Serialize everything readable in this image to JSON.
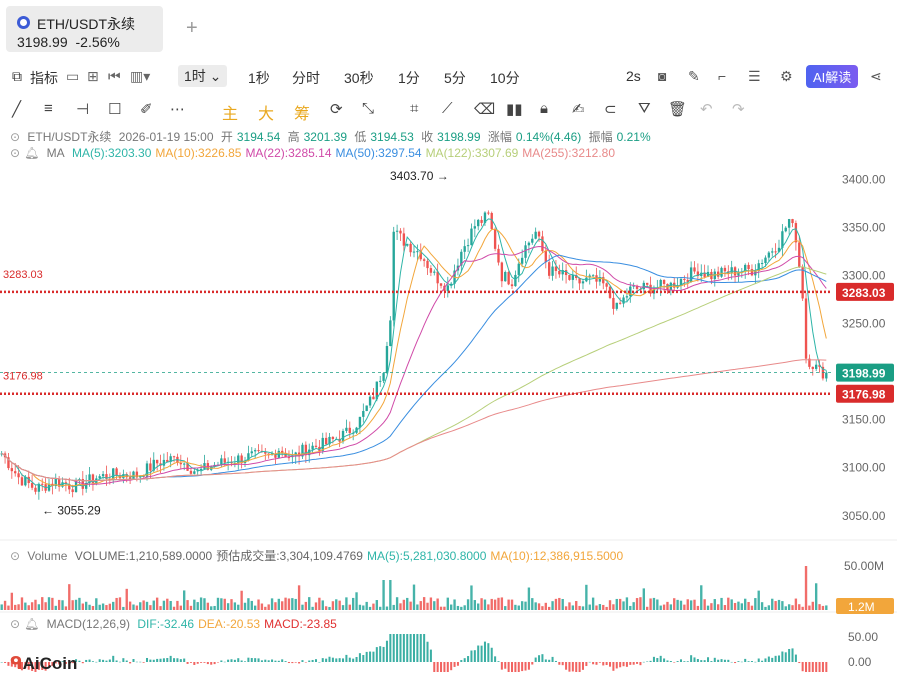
{
  "tab": {
    "title": "ETH/USDT永续",
    "price": "3198.99",
    "change": "-2.56%",
    "plus": "+"
  },
  "toolbar": {
    "indicator_label": "指标",
    "timeframes": [
      "1时",
      "1秒",
      "分时",
      "30秒",
      "1分",
      "5分",
      "10分"
    ],
    "active_timeframe": "1时",
    "refresh": "2s",
    "ai_label": "AI解读"
  },
  "drawing_tools": {
    "labels": [
      "主",
      "大",
      "筹"
    ]
  },
  "ohlc": {
    "symbol": "ETH/USDT永续",
    "datetime": "2026-01-19 15:00",
    "open_label": "开",
    "open": "3194.54",
    "high_label": "高",
    "high": "3201.39",
    "low_label": "低",
    "low": "3194.53",
    "close_label": "收",
    "close": "3198.99",
    "change_label": "涨幅",
    "change": "0.14%(4.46)",
    "amp_label": "振幅",
    "amp": "0.21%"
  },
  "ma_legend": {
    "label": "MA",
    "items": [
      {
        "text": "MA(5):3203.30",
        "color": "#2fb5a8"
      },
      {
        "text": "MA(10):3226.85",
        "color": "#f2a63b"
      },
      {
        "text": "MA(22):3285.14",
        "color": "#d04aa8"
      },
      {
        "text": "MA(50):3297.54",
        "color": "#3a8ee0"
      },
      {
        "text": "MA(122):3307.69",
        "color": "#b7cf7a"
      },
      {
        "text": "MA(255):3212.80",
        "color": "#e88a8a"
      }
    ]
  },
  "volume_legend": {
    "label": "Volume",
    "items": [
      {
        "text": "VOLUME:1,210,589.0000",
        "color": "#666666"
      },
      {
        "text": "预估成交量:3,304,109.4769",
        "color": "#666666"
      },
      {
        "text": "MA(5):5,281,030.8000",
        "color": "#2fb5a8"
      },
      {
        "text": "MA(10):12,386,915.5000",
        "color": "#f2a63b"
      }
    ],
    "axis_labels": [
      "50.00M"
    ],
    "current_label": "1.2M"
  },
  "macd_legend": {
    "label": "MACD(12,26,9)",
    "items": [
      {
        "text": "DIF:-32.46",
        "color": "#2fb5a8"
      },
      {
        "text": "DEA:-20.53",
        "color": "#f2a63b"
      },
      {
        "text": "MACD:-23.85",
        "color": "#e03030"
      }
    ],
    "axis_labels": [
      "50.00",
      "0.00"
    ]
  },
  "price_levels": {
    "left_labels": [
      "3283.03",
      "3176.98"
    ],
    "right_tags": [
      {
        "text": "3283.03",
        "value": 3283.03,
        "color": "#d92b2b"
      },
      {
        "text": "3198.99",
        "value": 3198.99,
        "color": "#1a9e84"
      },
      {
        "text": "3176.98",
        "value": 3176.98,
        "color": "#d92b2b"
      }
    ]
  },
  "annotations": {
    "high": {
      "text": "3403.70 →",
      "value": 3403.7
    },
    "low": {
      "text": "← 3055.29",
      "value": 3055.29
    }
  },
  "watermark": "AiCoin",
  "colors": {
    "up": "#26a69a",
    "down": "#ef5350",
    "level": "#d92b2b",
    "last": "#1a9e84"
  },
  "chart_data": {
    "type": "candlestick",
    "interval": "1h",
    "y_ticks": [
      3400,
      3350,
      3300,
      3250,
      3200,
      3150,
      3100,
      3050
    ],
    "y_tick_labels": [
      "3400.00",
      "3350.00",
      "3300.00",
      "3250.00",
      "3200.00",
      "3150.00",
      "3100.00",
      "3050.00"
    ],
    "ylim": [
      3030,
      3415
    ],
    "close_path": [
      [
        0,
        3115
      ],
      [
        5,
        3090
      ],
      [
        10,
        3078
      ],
      [
        16,
        3086
      ],
      [
        22,
        3080
      ],
      [
        28,
        3090
      ],
      [
        34,
        3093
      ],
      [
        40,
        3092
      ],
      [
        46,
        3105
      ],
      [
        52,
        3110
      ],
      [
        58,
        3095
      ],
      [
        62,
        3102
      ],
      [
        68,
        3108
      ],
      [
        74,
        3112
      ],
      [
        79,
        3111
      ],
      [
        82,
        3120
      ],
      [
        86,
        3110
      ],
      [
        90,
        3120
      ],
      [
        96,
        3125
      ],
      [
        102,
        3136
      ],
      [
        106,
        3150
      ],
      [
        110,
        3175
      ],
      [
        113,
        3205
      ],
      [
        115,
        3260
      ],
      [
        116,
        3345
      ],
      [
        120,
        3333
      ],
      [
        124,
        3323
      ],
      [
        128,
        3300
      ],
      [
        132,
        3288
      ],
      [
        136,
        3325
      ],
      [
        140,
        3352
      ],
      [
        144,
        3362
      ],
      [
        148,
        3300
      ],
      [
        151,
        3295
      ],
      [
        154,
        3325
      ],
      [
        158,
        3345
      ],
      [
        162,
        3305
      ],
      [
        166,
        3300
      ],
      [
        170,
        3292
      ],
      [
        174,
        3296
      ],
      [
        178,
        3290
      ],
      [
        182,
        3265
      ],
      [
        186,
        3285
      ],
      [
        190,
        3287
      ],
      [
        194,
        3288
      ],
      [
        198,
        3290
      ],
      [
        202,
        3298
      ],
      [
        206,
        3306
      ],
      [
        210,
        3300
      ],
      [
        214,
        3303
      ],
      [
        218,
        3305
      ],
      [
        222,
        3306
      ],
      [
        226,
        3320
      ],
      [
        230,
        3335
      ],
      [
        233,
        3358
      ],
      [
        235,
        3340
      ],
      [
        237,
        3280
      ],
      [
        238,
        3215
      ],
      [
        240,
        3208
      ],
      [
        242,
        3200
      ],
      [
        244,
        3199
      ]
    ],
    "high": 3403.7,
    "low": 3055.29,
    "last": 3198.99,
    "ma_current": {
      "MA5": 3203.3,
      "MA10": 3226.85,
      "MA22": 3285.14,
      "MA50": 3297.54,
      "MA122": 3307.69,
      "MA255": 3212.8
    }
  }
}
